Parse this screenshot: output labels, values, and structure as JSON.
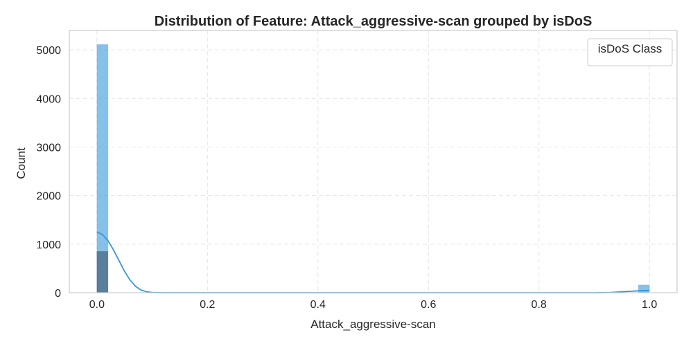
{
  "chart_data": {
    "type": "histogram",
    "title": "Distribution of Feature: Attack_aggressive-scan grouped by isDoS",
    "xlabel": "Attack_aggressive-scan",
    "ylabel": "Count",
    "xlim": [
      -0.05,
      1.05
    ],
    "ylim": [
      0,
      5400
    ],
    "x_ticks": [
      "0.0",
      "0.2",
      "0.4",
      "0.6",
      "0.8",
      "1.0"
    ],
    "x_tick_values": [
      0.0,
      0.2,
      0.4,
      0.6,
      0.8,
      1.0
    ],
    "y_ticks": [
      "0",
      "1000",
      "2000",
      "3000",
      "4000",
      "5000"
    ],
    "y_tick_values": [
      0,
      1000,
      2000,
      3000,
      4000,
      5000
    ],
    "grid": true,
    "bin_width": 0.02,
    "series": [
      {
        "color": "#3498db",
        "bars": [
          {
            "x_start": 0.0,
            "x_end": 0.02,
            "value": 5110
          },
          {
            "x_start": 0.98,
            "x_end": 1.0,
            "value": 160
          }
        ],
        "kde": [
          [
            0.0,
            1250
          ],
          [
            0.01,
            1200
          ],
          [
            0.02,
            1070
          ],
          [
            0.03,
            880
          ],
          [
            0.04,
            660
          ],
          [
            0.05,
            440
          ],
          [
            0.06,
            260
          ],
          [
            0.07,
            130
          ],
          [
            0.08,
            55
          ],
          [
            0.09,
            18
          ],
          [
            0.1,
            5
          ],
          [
            0.12,
            0
          ],
          [
            0.9,
            0
          ],
          [
            0.93,
            6
          ],
          [
            0.96,
            25
          ],
          [
            0.98,
            38
          ],
          [
            1.0,
            45
          ]
        ]
      },
      {
        "color": "#34495e",
        "bars": [
          {
            "x_start": 0.0,
            "x_end": 0.02,
            "value": 850
          }
        ]
      }
    ],
    "legend": {
      "title": "isDoS Class",
      "position": "top-right"
    }
  }
}
